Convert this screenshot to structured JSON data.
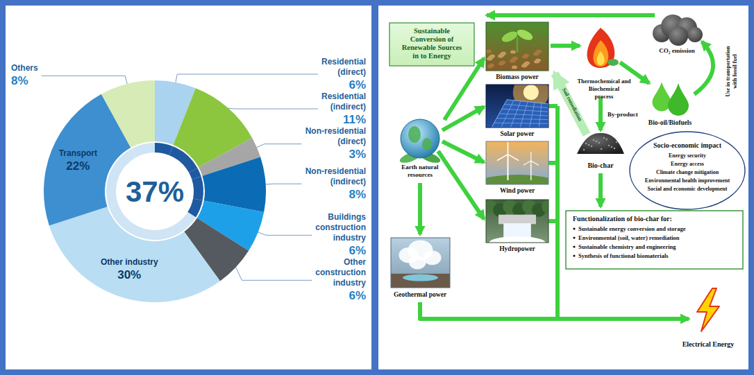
{
  "chart_data": {
    "type": "pie",
    "categories": [
      "Residential (direct)",
      "Residential (indirect)",
      "Non-residential (direct)",
      "Non-residential (indirect)",
      "Buildings construction industry",
      "Other construction industry",
      "Other industry",
      "Transport",
      "Others"
    ],
    "values": [
      6,
      11,
      3,
      8,
      6,
      6,
      30,
      22,
      8
    ],
    "value_labels": [
      "6%",
      "11%",
      "3%",
      "8%",
      "6%",
      "6%",
      "30%",
      "22%",
      "8%"
    ],
    "colors": [
      "#a9d3ee",
      "#8cc63f",
      "#a6a6a6",
      "#0b6cb5",
      "#1ea0e8",
      "#555a60",
      "#b9ddf3",
      "#3e8fd0",
      "#d6ebb5"
    ],
    "annotation": "37%",
    "data_labels": true
  },
  "diagram": {
    "title_box": "Sustainable Conversion of Renewable Sources in to Energy",
    "sources": {
      "earth": "Earth natural resources",
      "biomass": "Biomass power",
      "solar": "Solar power",
      "wind": "Wind power",
      "hydro": "Hydropower",
      "geothermal": "Geothermal power"
    },
    "process": "Thermochemical and Biochemical process",
    "biofuel": "Bio-oil/Biofuels",
    "emission": "CO₂ emission",
    "emission_use": "Use in transportation with fossil fuel",
    "byproduct_arrow": "By-product",
    "biochar": "Bio-char",
    "soil_arrow": "Soil remediation",
    "impact": {
      "title": "Socio-economic impact",
      "items": [
        "Energy security",
        "Energy access",
        "Climate change mitigation",
        "Environmental health improvement",
        "Social and economic development"
      ]
    },
    "functionalization": {
      "title": "Functionalization of bio-char for:",
      "items": [
        "Sustainable energy conversion and storage",
        "Environmental (soil, water) remediation",
        "Sustainable chemistry and engineering",
        "Synthesis of functional biomaterials"
      ]
    },
    "output": "Electrical Energy"
  }
}
